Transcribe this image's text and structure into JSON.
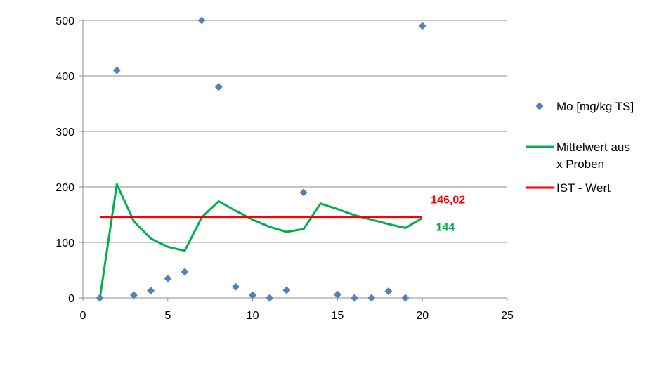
{
  "chart_data": {
    "type": "scatter",
    "xlim": [
      0,
      25
    ],
    "ylim": [
      0,
      500
    ],
    "x_ticks": [
      "0",
      "5",
      "10",
      "15",
      "20",
      "25"
    ],
    "y_ticks": [
      "0",
      "100",
      "200",
      "300",
      "400",
      "500"
    ],
    "grid": "horizontal",
    "legend_position": "right",
    "series": [
      {
        "name": "Mo [mg/kg TS]",
        "kind": "scatter",
        "color": "#4F81BD",
        "points": [
          [
            1,
            0
          ],
          [
            2,
            410
          ],
          [
            3,
            5
          ],
          [
            4,
            13
          ],
          [
            5,
            35
          ],
          [
            6,
            47
          ],
          [
            7,
            500
          ],
          [
            8,
            380
          ],
          [
            9,
            20
          ],
          [
            10,
            5
          ],
          [
            11,
            0
          ],
          [
            12,
            14
          ],
          [
            13,
            190
          ],
          [
            15,
            6
          ],
          [
            16,
            0
          ],
          [
            17,
            0
          ],
          [
            18,
            12
          ],
          [
            19,
            0
          ],
          [
            20,
            490
          ]
        ]
      },
      {
        "name": "Mittelwert aus x Proben",
        "name_lines": [
          "Mittelwert aus",
          "x Proben"
        ],
        "kind": "line",
        "color": "#00B050",
        "points": [
          [
            1,
            0
          ],
          [
            2,
            205
          ],
          [
            3,
            138
          ],
          [
            4,
            107
          ],
          [
            5,
            92
          ],
          [
            6,
            85
          ],
          [
            7,
            145
          ],
          [
            8,
            174
          ],
          [
            9,
            157
          ],
          [
            10,
            141
          ],
          [
            11,
            128
          ],
          [
            12,
            119
          ],
          [
            13,
            124
          ],
          [
            14,
            170
          ],
          [
            15,
            160
          ],
          [
            16,
            149
          ],
          [
            17,
            141
          ],
          [
            18,
            133
          ],
          [
            19,
            126
          ],
          [
            20,
            144
          ]
        ]
      },
      {
        "name": "IST - Wert",
        "kind": "line",
        "color": "#FF0000",
        "points": [
          [
            1,
            146.02
          ],
          [
            20,
            146.02
          ]
        ]
      }
    ],
    "annotations": [
      {
        "text": "146,02",
        "color": "#FF0000",
        "x": 20.5,
        "y": 170
      },
      {
        "text": "144",
        "color": "#00B050",
        "x": 20.8,
        "y": 121
      }
    ]
  }
}
